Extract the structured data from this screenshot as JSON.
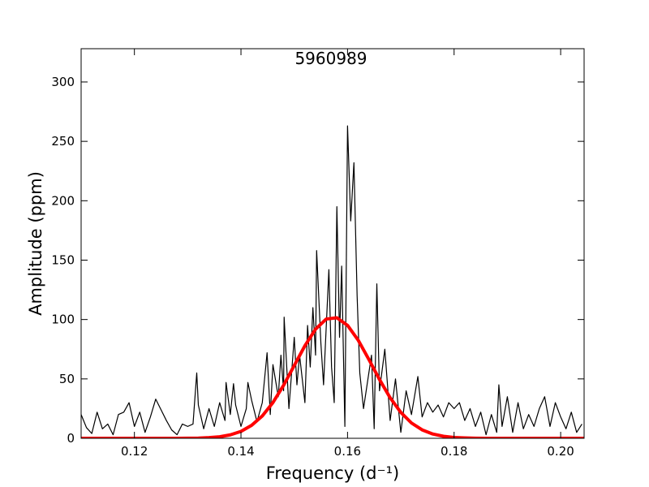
{
  "chart_data": {
    "type": "line",
    "title": "5960989",
    "xlabel": "Frequency (d⁻¹)",
    "ylabel": "Amplitude (ppm)",
    "xlim": [
      0.11,
      0.2044
    ],
    "ylim": [
      0,
      328
    ],
    "xticks": [
      0.12,
      0.14,
      0.16,
      0.18,
      {
        "value": 0.2,
        "label": "0.20"
      }
    ],
    "yticks": [
      0,
      50,
      100,
      150,
      200,
      250,
      300
    ],
    "series": [
      {
        "color": "#000000",
        "width": 1.2,
        "x": [
          0.11,
          0.111,
          0.112,
          0.113,
          0.114,
          0.115,
          0.116,
          0.117,
          0.118,
          0.119,
          0.12,
          0.121,
          0.122,
          0.123,
          0.124,
          0.125,
          0.126,
          0.127,
          0.128,
          0.129,
          0.13,
          0.131,
          0.1317,
          0.132,
          0.133,
          0.134,
          0.135,
          0.136,
          0.137,
          0.1372,
          0.138,
          0.1386,
          0.139,
          0.14,
          0.141,
          0.1413,
          0.142,
          0.143,
          0.144,
          0.1449,
          0.1455,
          0.146,
          0.147,
          0.1475,
          0.148,
          0.1481,
          0.149,
          0.15,
          0.1505,
          0.151,
          0.152,
          0.1525,
          0.153,
          0.1535,
          0.154,
          0.1542,
          0.155,
          0.1555,
          0.1565,
          0.157,
          0.1575,
          0.158,
          0.1585,
          0.1589,
          0.1595,
          0.16,
          0.1606,
          0.1612,
          0.1618,
          0.1623,
          0.163,
          0.164,
          0.1645,
          0.165,
          0.1655,
          0.166,
          0.167,
          0.168,
          0.169,
          0.17,
          0.171,
          0.172,
          0.1732,
          0.174,
          0.175,
          0.176,
          0.177,
          0.178,
          0.179,
          0.18,
          0.181,
          0.182,
          0.183,
          0.184,
          0.185,
          0.186,
          0.187,
          0.188,
          0.1884,
          0.189,
          0.19,
          0.191,
          0.192,
          0.193,
          0.194,
          0.195,
          0.196,
          0.197,
          0.198,
          0.199,
          0.2,
          0.201,
          0.202,
          0.203,
          0.204
        ],
        "values": [
          20,
          9,
          4,
          22,
          8,
          12,
          3,
          20,
          22,
          30,
          10,
          22,
          5,
          18,
          33,
          24,
          15,
          7,
          3,
          12,
          10,
          12,
          55,
          28,
          8,
          25,
          10,
          30,
          15,
          47,
          20,
          46,
          28,
          10,
          25,
          47,
          32,
          14,
          30,
          72,
          20,
          62,
          35,
          70,
          40,
          102,
          25,
          85,
          45,
          70,
          30,
          95,
          60,
          110,
          70,
          158,
          80,
          45,
          142,
          60,
          30,
          195,
          85,
          145,
          10,
          263,
          183,
          232,
          120,
          55,
          25,
          55,
          70,
          8,
          130,
          40,
          75,
          15,
          50,
          5,
          40,
          20,
          52,
          18,
          30,
          22,
          28,
          18,
          30,
          25,
          30,
          15,
          25,
          10,
          22,
          3,
          20,
          5,
          45,
          10,
          35,
          5,
          30,
          8,
          20,
          10,
          25,
          35,
          10,
          30,
          18,
          8,
          22,
          5,
          12
        ]
      },
      {
        "color": "#ff0000",
        "width": 4,
        "x": [
          0.11,
          0.128,
          0.13,
          0.132,
          0.134,
          0.136,
          0.138,
          0.14,
          0.142,
          0.144,
          0.146,
          0.148,
          0.15,
          0.152,
          0.154,
          0.156,
          0.158,
          0.16,
          0.162,
          0.164,
          0.166,
          0.168,
          0.17,
          0.172,
          0.174,
          0.176,
          0.178,
          0.18,
          0.182,
          0.184,
          0.186,
          0.2044
        ],
        "values": [
          0,
          0,
          0.1,
          0.2,
          0.6,
          1.3,
          2.9,
          5.8,
          10.9,
          18.8,
          30.1,
          44.6,
          61.3,
          77.9,
          91.9,
          100.4,
          101.5,
          95.1,
          82.6,
          66.4,
          49.5,
          34.1,
          21.8,
          12.9,
          7.1,
          3.6,
          1.7,
          0.7,
          0.3,
          0.1,
          0,
          0
        ]
      }
    ]
  }
}
